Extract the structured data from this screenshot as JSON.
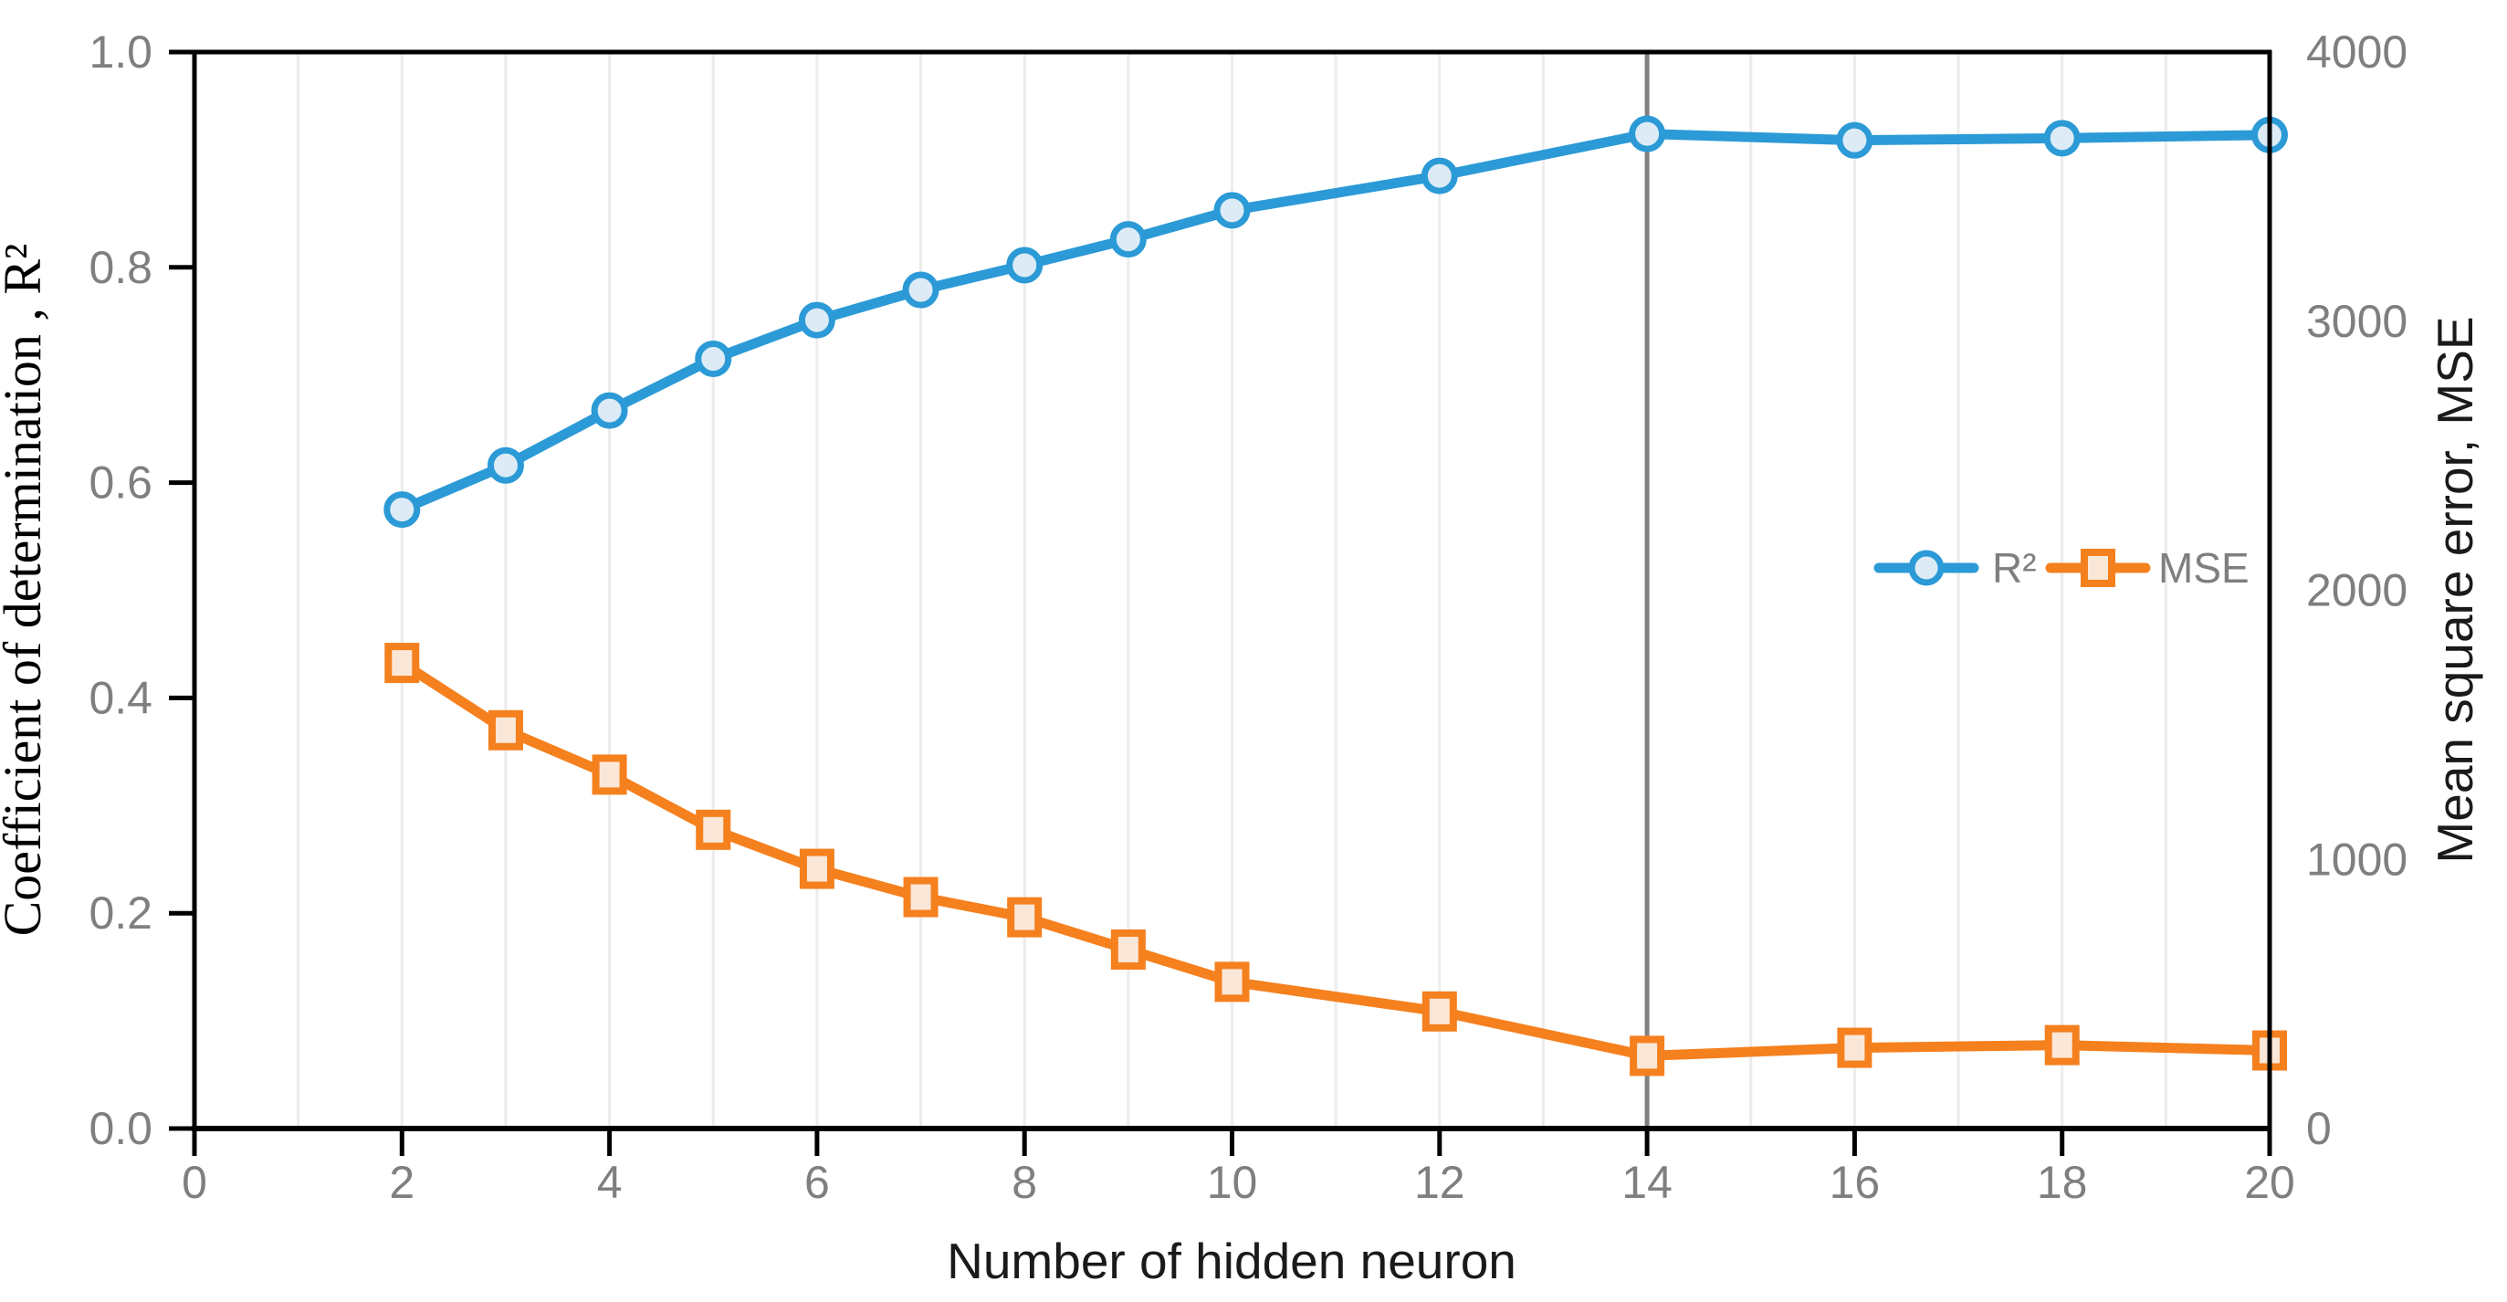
{
  "chart_data": {
    "type": "line",
    "title": "",
    "xlabel": "Number of hidden neuron",
    "ylabel_left": "Coefficient of determination , R²",
    "ylabel_right": "Mean square error, MSE",
    "x_range": [
      0,
      20
    ],
    "y_left_range": [
      0,
      1
    ],
    "y_right_range": [
      0,
      4000
    ],
    "x": [
      2,
      3,
      4,
      5,
      6,
      7,
      8,
      9,
      10,
      12,
      14,
      16,
      18,
      20
    ],
    "series": [
      {
        "name": "R²",
        "axis": "left",
        "marker": "circle",
        "color": "#2b9ad6",
        "marker_fill": "#dcebf6",
        "values": [
          0.575,
          0.616,
          0.667,
          0.715,
          0.751,
          0.779,
          0.802,
          0.826,
          0.853,
          0.885,
          0.924,
          0.918,
          0.92,
          0.923
        ]
      },
      {
        "name": "MSE",
        "axis": "right",
        "marker": "square",
        "color": "#f5801e",
        "marker_fill": "#fbe7d8",
        "values": [
          1730,
          1480,
          1315,
          1110,
          965,
          860,
          785,
          665,
          545,
          435,
          270,
          300,
          310,
          290
        ]
      }
    ],
    "x_ticks": [
      "0",
      "2",
      "4",
      "6",
      "8",
      "10",
      "12",
      "14",
      "16",
      "18",
      "20"
    ],
    "y_left_ticks": [
      "0.0",
      "0.2",
      "0.4",
      "0.6",
      "0.8",
      "1.0"
    ],
    "y_right_ticks": [
      "0",
      "1000",
      "2000",
      "3000",
      "4000"
    ],
    "gridlines": "vertical at every integer x from 1 to 19",
    "grid_color": "#ececec",
    "vline_x": 14,
    "vline_color": "#808080",
    "axis_color": "#000000",
    "tick_label_color": "#7f7f7f",
    "legend_position": "middle-right inside plot",
    "legend_text_color": "#7f7f7f",
    "background": "#ffffff"
  }
}
